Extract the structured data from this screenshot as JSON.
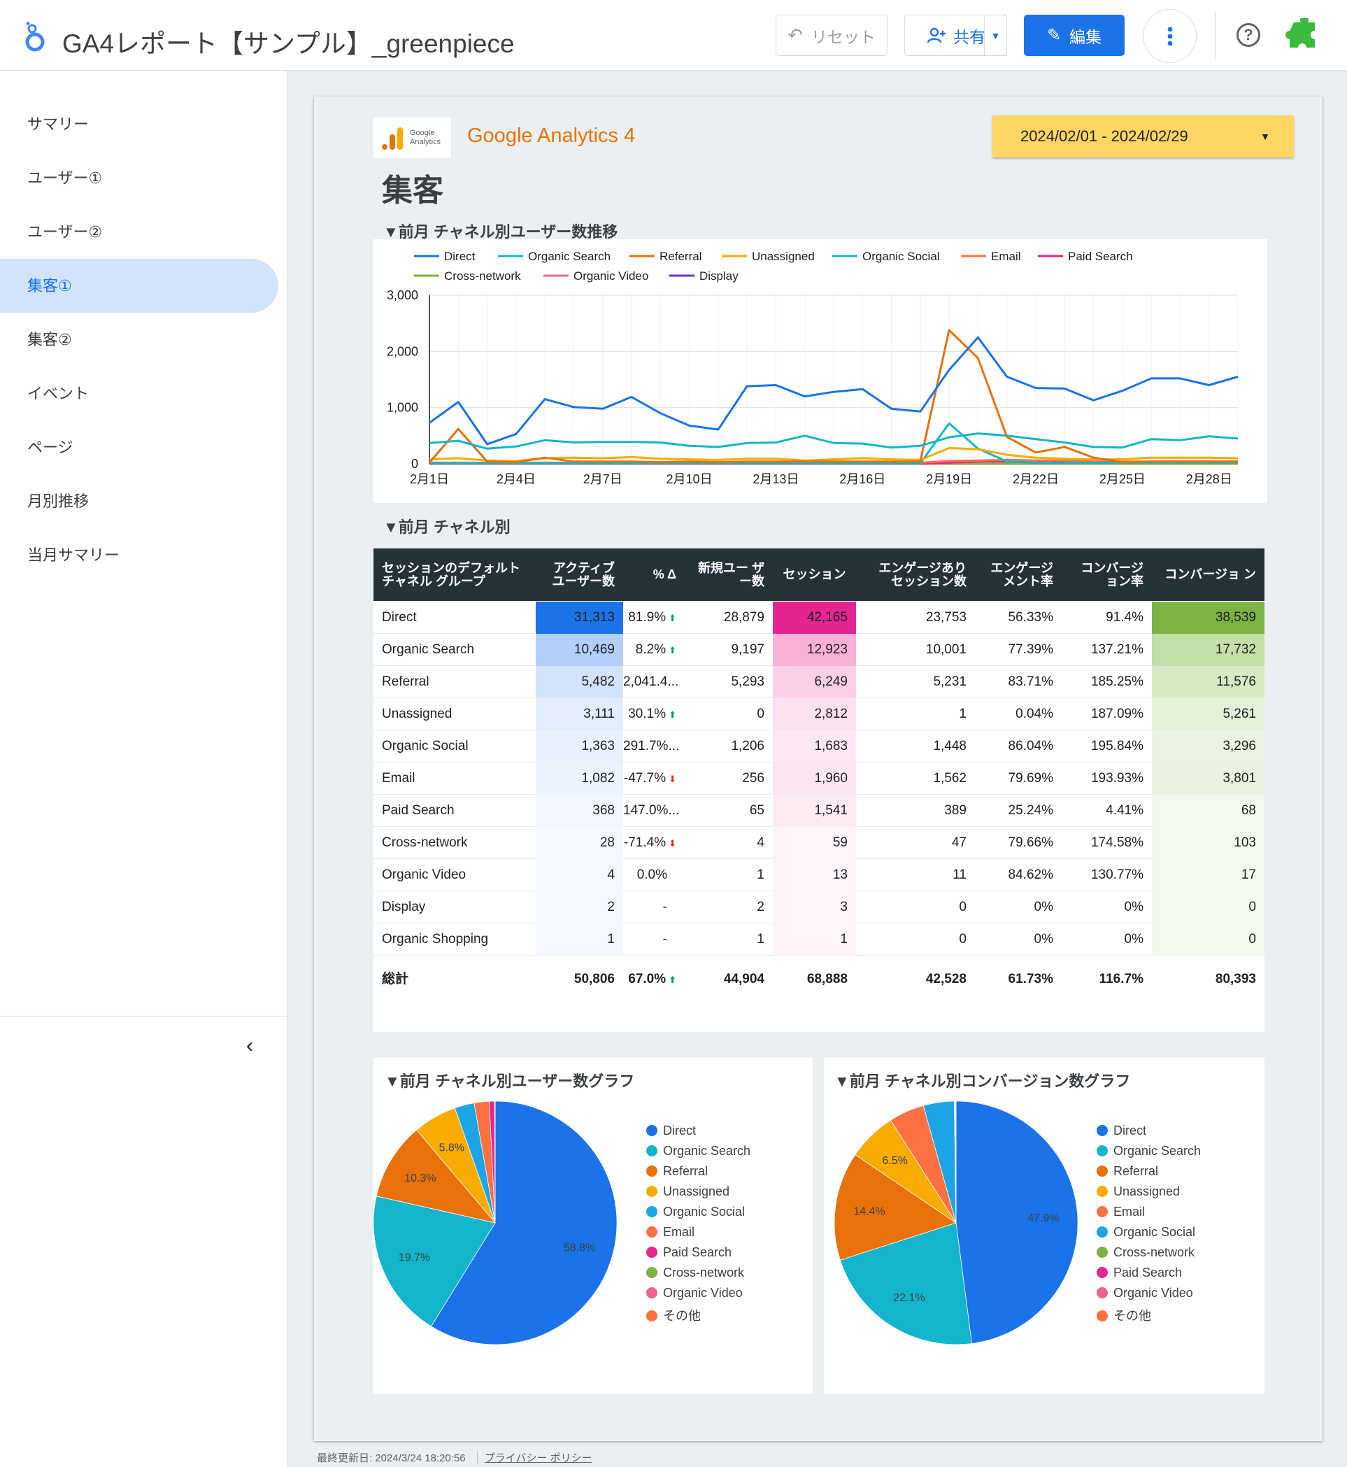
{
  "header": {
    "title": "GA4レポート【サンプル】_greenpiece",
    "reset_label": "リセット",
    "share_label": "共有",
    "edit_label": "編集"
  },
  "sidebar": {
    "items": [
      {
        "label": "サマリー",
        "active": false
      },
      {
        "label": "ユーザー①",
        "active": false
      },
      {
        "label": "ユーザー②",
        "active": false
      },
      {
        "label": "集客①",
        "active": true
      },
      {
        "label": "集客②",
        "active": false
      },
      {
        "label": "イベント",
        "active": false
      },
      {
        "label": "ページ",
        "active": false
      },
      {
        "label": "月別推移",
        "active": false
      },
      {
        "label": "当月サマリー",
        "active": false
      }
    ]
  },
  "report": {
    "ga_logo_line1": "Google",
    "ga_logo_line2": "Analytics",
    "ga_name": "Google Analytics 4",
    "date_range": "2024/02/01 - 2024/02/29",
    "page_title": "集客",
    "section_line": "▼前月 チャネル別ユーザー数推移",
    "section_table": "▼前月 チャネル別",
    "section_pie_users": "▼前月 チャネル別ユーザー数グラフ",
    "section_pie_conv": "▼前月 チャネル別コンバージョン数グラフ"
  },
  "table": {
    "headers": [
      "セッションのデフォルト チャネル グループ",
      "アクティブ ユーザー数",
      "% Δ",
      "新規ユー ザー数",
      "セッション",
      "エンゲージあり セッション数",
      "エンゲージ メント率",
      "コンバージ ョン率",
      "コンバージョ ン"
    ],
    "rows": [
      {
        "channel": "Direct",
        "users": "31,313",
        "delta": "81.9%",
        "trend": "up",
        "new_users": "28,879",
        "sessions": "42,165",
        "engaged": "23,753",
        "eng_rate": "56.33%",
        "conv_rate": "91.4%",
        "conv": "38,539"
      },
      {
        "channel": "Organic Search",
        "users": "10,469",
        "delta": "8.2%",
        "trend": "up",
        "new_users": "9,197",
        "sessions": "12,923",
        "engaged": "10,001",
        "eng_rate": "77.39%",
        "conv_rate": "137.21%",
        "conv": "17,732"
      },
      {
        "channel": "Referral",
        "users": "5,482",
        "delta": "2,041.4...",
        "trend": "",
        "new_users": "5,293",
        "sessions": "6,249",
        "engaged": "5,231",
        "eng_rate": "83.71%",
        "conv_rate": "185.25%",
        "conv": "11,576"
      },
      {
        "channel": "Unassigned",
        "users": "3,111",
        "delta": "30.1%",
        "trend": "up",
        "new_users": "0",
        "sessions": "2,812",
        "engaged": "1",
        "eng_rate": "0.04%",
        "conv_rate": "187.09%",
        "conv": "5,261"
      },
      {
        "channel": "Organic Social",
        "users": "1,363",
        "delta": "291.7%...",
        "trend": "",
        "new_users": "1,206",
        "sessions": "1,683",
        "engaged": "1,448",
        "eng_rate": "86.04%",
        "conv_rate": "195.84%",
        "conv": "3,296"
      },
      {
        "channel": "Email",
        "users": "1,082",
        "delta": "-47.7%",
        "trend": "down",
        "new_users": "256",
        "sessions": "1,960",
        "engaged": "1,562",
        "eng_rate": "79.69%",
        "conv_rate": "193.93%",
        "conv": "3,801"
      },
      {
        "channel": "Paid Search",
        "users": "368",
        "delta": "147.0%...",
        "trend": "",
        "new_users": "65",
        "sessions": "1,541",
        "engaged": "389",
        "eng_rate": "25.24%",
        "conv_rate": "4.41%",
        "conv": "68"
      },
      {
        "channel": "Cross-network",
        "users": "28",
        "delta": "-71.4%",
        "trend": "down",
        "new_users": "4",
        "sessions": "59",
        "engaged": "47",
        "eng_rate": "79.66%",
        "conv_rate": "174.58%",
        "conv": "103"
      },
      {
        "channel": "Organic Video",
        "users": "4",
        "delta": "0.0%",
        "trend": "",
        "new_users": "1",
        "sessions": "13",
        "engaged": "11",
        "eng_rate": "84.62%",
        "conv_rate": "130.77%",
        "conv": "17"
      },
      {
        "channel": "Display",
        "users": "2",
        "delta": "-",
        "trend": "",
        "new_users": "2",
        "sessions": "3",
        "engaged": "0",
        "eng_rate": "0%",
        "conv_rate": "0%",
        "conv": "0"
      },
      {
        "channel": "Organic Shopping",
        "users": "1",
        "delta": "-",
        "trend": "",
        "new_users": "1",
        "sessions": "1",
        "engaged": "0",
        "eng_rate": "0%",
        "conv_rate": "0%",
        "conv": "0"
      }
    ],
    "total": {
      "channel": "総計",
      "users": "50,806",
      "delta": "67.0%",
      "trend": "up",
      "new_users": "44,904",
      "sessions": "68,888",
      "engaged": "42,528",
      "eng_rate": "61.73%",
      "conv_rate": "116.7%",
      "conv": "80,393"
    }
  },
  "footer": {
    "updated": "最終更新日: 2024/3/24 18:20:56",
    "privacy": "プライバシー ポリシー"
  },
  "colors": {
    "accent": "#1a73e8",
    "direct": "#1a73e8",
    "organic_search": "#12b5cb",
    "referral": "#e8710a",
    "unassigned": "#f9ab00",
    "organic_social": "#12b5cb",
    "email": "#ff7043",
    "paid_search": "#e52592",
    "cross_network": "#7cb342",
    "organic_video": "#f06292",
    "display": "#673ab7"
  },
  "chart_data": [
    {
      "type": "line",
      "title": "",
      "x": [
        "2月1日",
        "2月2日",
        "2月3日",
        "2月4日",
        "2月5日",
        "2月6日",
        "2月7日",
        "2月8日",
        "2月9日",
        "2月10日",
        "2月11日",
        "2月12日",
        "2月13日",
        "2月14日",
        "2月15日",
        "2月16日",
        "2月17日",
        "2月18日",
        "2月19日",
        "2月20日",
        "2月21日",
        "2月22日",
        "2月23日",
        "2月24日",
        "2月25日",
        "2月26日",
        "2月27日",
        "2月28日",
        "2月29日"
      ],
      "x_ticks": [
        "2月1日",
        "2月4日",
        "2月7日",
        "2月10日",
        "2月13日",
        "2月16日",
        "2月19日",
        "2月22日",
        "2月25日",
        "2月28日"
      ],
      "ylim": [
        0,
        3000
      ],
      "y_ticks": [
        "0",
        "1,000",
        "2,000",
        "3,000"
      ],
      "legend_position": "top",
      "series": [
        {
          "name": "Direct",
          "color": "#1a73e8",
          "values": [
            730,
            1100,
            350,
            530,
            1150,
            1010,
            980,
            1190,
            900,
            680,
            610,
            1380,
            1400,
            1200,
            1280,
            1330,
            980,
            930,
            1670,
            2250,
            1550,
            1350,
            1340,
            1130,
            1300,
            1520,
            1520,
            1400,
            1550
          ]
        },
        {
          "name": "Organic Search",
          "color": "#12b5cb",
          "values": [
            370,
            410,
            270,
            310,
            420,
            380,
            390,
            390,
            380,
            320,
            300,
            370,
            380,
            500,
            370,
            360,
            290,
            320,
            470,
            540,
            500,
            440,
            380,
            300,
            290,
            440,
            420,
            490,
            450
          ]
        },
        {
          "name": "Referral",
          "color": "#e8710a",
          "values": [
            20,
            620,
            40,
            30,
            110,
            40,
            40,
            40,
            30,
            40,
            30,
            40,
            40,
            40,
            40,
            40,
            40,
            40,
            2380,
            1880,
            480,
            200,
            300,
            110,
            30,
            40,
            40,
            40,
            40
          ]
        },
        {
          "name": "Unassigned",
          "color": "#f9ab00",
          "values": [
            80,
            100,
            60,
            50,
            100,
            110,
            100,
            120,
            90,
            80,
            70,
            90,
            90,
            60,
            80,
            100,
            80,
            70,
            280,
            260,
            160,
            110,
            90,
            80,
            80,
            110,
            110,
            110,
            100
          ]
        },
        {
          "name": "Organic Social",
          "color": "#12b5cb",
          "values": [
            10,
            10,
            10,
            10,
            10,
            10,
            10,
            10,
            10,
            10,
            10,
            10,
            10,
            10,
            10,
            10,
            10,
            10,
            720,
            270,
            40,
            20,
            20,
            20,
            20,
            20,
            20,
            20,
            20
          ]
        },
        {
          "name": "Email",
          "color": "#ff7043",
          "values": [
            20,
            20,
            20,
            20,
            20,
            20,
            20,
            20,
            20,
            20,
            20,
            20,
            20,
            20,
            20,
            20,
            20,
            20,
            50,
            60,
            70,
            60,
            60,
            40,
            40,
            40,
            40,
            40,
            40
          ]
        },
        {
          "name": "Paid Search",
          "color": "#e52592",
          "values": [
            5,
            5,
            5,
            5,
            5,
            5,
            5,
            5,
            5,
            5,
            5,
            5,
            5,
            5,
            5,
            5,
            5,
            5,
            20,
            40,
            40,
            40,
            40,
            40,
            30,
            30,
            30,
            30,
            30
          ]
        },
        {
          "name": "Cross-network",
          "color": "#7cb342",
          "values": [
            2,
            2,
            2,
            2,
            2,
            2,
            2,
            2,
            2,
            2,
            2,
            2,
            2,
            2,
            2,
            2,
            2,
            2,
            2,
            2,
            2,
            2,
            2,
            2,
            2,
            2,
            2,
            2,
            2
          ]
        },
        {
          "name": "Organic Video",
          "color": "#f06292",
          "values": [
            0,
            0,
            0,
            0,
            0,
            0,
            0,
            0,
            0,
            0,
            0,
            0,
            0,
            0,
            0,
            0,
            0,
            0,
            0,
            0,
            0,
            0,
            0,
            0,
            0,
            0,
            0,
            0,
            0
          ]
        },
        {
          "name": "Display",
          "color": "#673ab7",
          "values": [
            0,
            0,
            0,
            0,
            0,
            0,
            0,
            0,
            0,
            0,
            0,
            0,
            0,
            0,
            0,
            0,
            0,
            0,
            0,
            0,
            0,
            0,
            0,
            0,
            0,
            0,
            0,
            0,
            0
          ]
        }
      ]
    },
    {
      "type": "pie",
      "title": "",
      "legend_position": "right",
      "slices": [
        {
          "name": "Direct",
          "value": 58.8,
          "label": "58.8%",
          "color": "#1a73e8"
        },
        {
          "name": "Organic Search",
          "value": 19.7,
          "label": "19.7%",
          "color": "#12b5cb"
        },
        {
          "name": "Referral",
          "value": 10.3,
          "label": "10.3%",
          "color": "#e8710a"
        },
        {
          "name": "Unassigned",
          "value": 5.8,
          "label": "5.8%",
          "color": "#f9ab00"
        },
        {
          "name": "Organic Social",
          "value": 2.6,
          "label": "",
          "color": "#1ba5e6"
        },
        {
          "name": "Email",
          "value": 2.0,
          "label": "",
          "color": "#ff7043"
        },
        {
          "name": "Paid Search",
          "value": 0.7,
          "label": "",
          "color": "#e52592"
        },
        {
          "name": "Cross-network",
          "value": 0.05,
          "label": "",
          "color": "#7cb342"
        },
        {
          "name": "Organic Video",
          "value": 0.01,
          "label": "",
          "color": "#f06292"
        },
        {
          "name": "その他",
          "value": 0.01,
          "label": "",
          "color": "#ff7043"
        }
      ]
    },
    {
      "type": "pie",
      "title": "",
      "legend_position": "right",
      "slices": [
        {
          "name": "Direct",
          "value": 47.9,
          "label": "47.9%",
          "color": "#1a73e8"
        },
        {
          "name": "Organic Search",
          "value": 22.1,
          "label": "22.1%",
          "color": "#12b5cb"
        },
        {
          "name": "Referral",
          "value": 14.4,
          "label": "14.4%",
          "color": "#e8710a"
        },
        {
          "name": "Unassigned",
          "value": 6.5,
          "label": "6.5%",
          "color": "#f9ab00"
        },
        {
          "name": "Email",
          "value": 4.7,
          "label": "",
          "color": "#ff7043"
        },
        {
          "name": "Organic Social",
          "value": 4.1,
          "label": "",
          "color": "#1ba5e6"
        },
        {
          "name": "Cross-network",
          "value": 0.1,
          "label": "",
          "color": "#7cb342"
        },
        {
          "name": "Paid Search",
          "value": 0.1,
          "label": "",
          "color": "#e52592"
        },
        {
          "name": "Organic Video",
          "value": 0.02,
          "label": "",
          "color": "#f06292"
        },
        {
          "name": "その他",
          "value": 0.01,
          "label": "",
          "color": "#ff7043"
        }
      ]
    }
  ]
}
